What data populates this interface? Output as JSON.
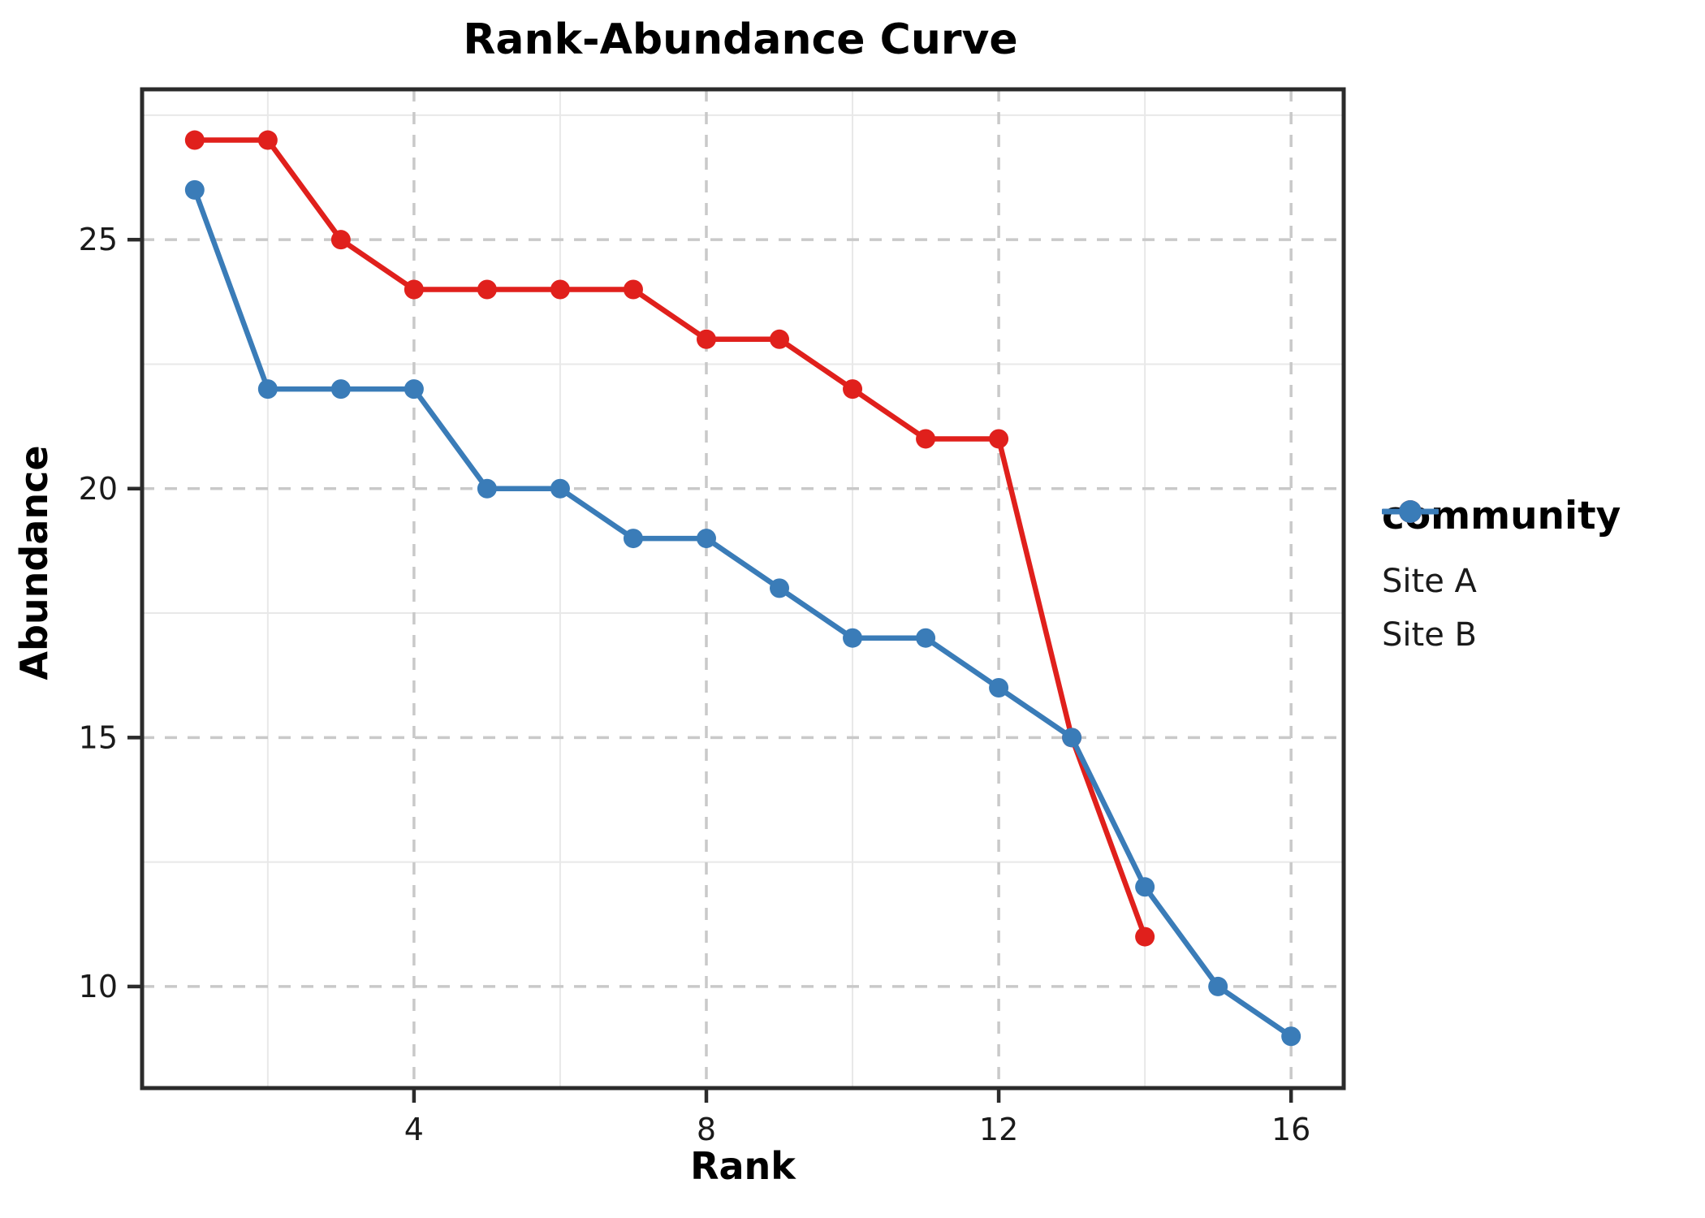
{
  "title": "Rank-Abundance Curve",
  "legend": {
    "title": "community",
    "items": [
      {
        "label": "Site A",
        "color": "#e0201c"
      },
      {
        "label": "Site B",
        "color": "#3a7cb8"
      }
    ]
  },
  "axes": {
    "x_label": "Rank",
    "y_label": "Abundance",
    "x_tick_labels": [
      "4",
      "8",
      "12",
      "16"
    ],
    "y_tick_labels": [
      "10",
      "15",
      "20",
      "25"
    ]
  },
  "styles": {
    "major_grid_color": "#c9c9c9",
    "minor_grid_color": "#e8e8e8",
    "panel_border_color": "#2b2b2b",
    "tick_label_color": "#1a1a1a",
    "text_color": "#000000",
    "background": "#ffffff"
  },
  "chart_data": {
    "type": "line",
    "title": "Rank-Abundance Curve",
    "xlabel": "Rank",
    "ylabel": "Abundance",
    "legend_title": "community",
    "legend_position": "right",
    "grid": "major dashed gray at ticks; minor solid light gray between",
    "x_ticks": [
      4,
      8,
      12,
      16
    ],
    "y_ticks": [
      10,
      15,
      20,
      25
    ],
    "x_minor_ticks": [
      2,
      6,
      10,
      14
    ],
    "y_minor_ticks": [
      12.5,
      17.5,
      22.5,
      27.5
    ],
    "xlim": [
      0.28,
      16.72
    ],
    "ylim": [
      7.96,
      28.02
    ],
    "series": [
      {
        "name": "Site A",
        "color": "#e0201c",
        "x": [
          1,
          2,
          3,
          4,
          5,
          6,
          7,
          8,
          9,
          10,
          11,
          12,
          13,
          14
        ],
        "y": [
          27,
          27,
          25,
          24,
          24,
          24,
          24,
          23,
          23,
          22,
          21,
          21,
          15,
          11
        ]
      },
      {
        "name": "Site B",
        "color": "#3a7cb8",
        "x": [
          1,
          2,
          3,
          4,
          5,
          6,
          7,
          8,
          9,
          10,
          11,
          12,
          13,
          14,
          15,
          16
        ],
        "y": [
          26,
          22,
          22,
          22,
          20,
          20,
          19,
          19,
          18,
          17,
          17,
          16,
          15,
          12,
          10,
          9
        ]
      }
    ]
  }
}
